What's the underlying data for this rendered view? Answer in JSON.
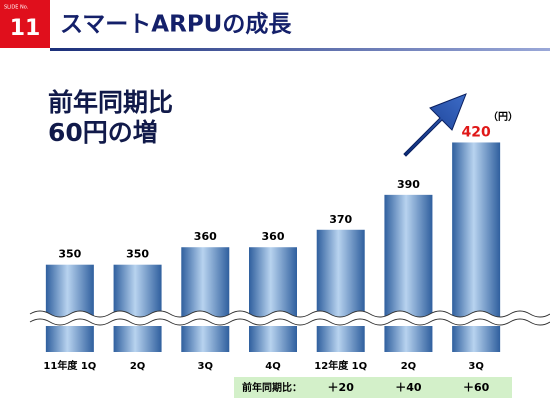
{
  "slide_no_label": "SLIDE No.",
  "slide_no": "11",
  "title": "スマートARPUの成長",
  "subtitle_lines": [
    "前年同期比",
    "60円の増"
  ],
  "chart_data": {
    "type": "bar",
    "unit": "（円）",
    "categories": [
      "11年度 1Q",
      "2Q",
      "3Q",
      "4Q",
      "12年度 1Q",
      "2Q",
      "3Q"
    ],
    "values": [
      350,
      350,
      360,
      360,
      370,
      390,
      420
    ],
    "value_label_colors": [
      "#000000",
      "#000000",
      "#000000",
      "#000000",
      "#000000",
      "#000000",
      "#e01818"
    ],
    "color": "#4f82c0",
    "ylim": [
      300,
      430
    ],
    "axis_break": true
  },
  "yoy": {
    "label": "前年同期比：",
    "values": [
      "＋20",
      "＋40",
      "＋60"
    ]
  }
}
